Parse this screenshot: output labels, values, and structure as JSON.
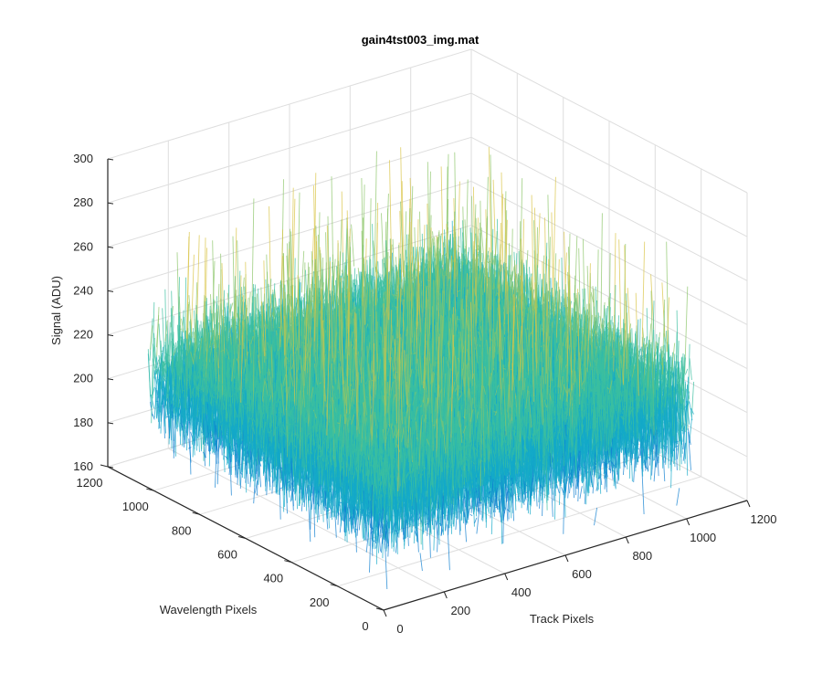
{
  "chart_data": {
    "type": "surface",
    "title": "gain4tst003_img.mat",
    "xlabel": "Track Pixels",
    "ylabel": "Wavelength Pixels",
    "zlabel": "Signal (ADU)",
    "xlim": [
      0,
      1200
    ],
    "ylim": [
      0,
      1200
    ],
    "zlim": [
      160,
      300
    ],
    "x_ticks": [
      "0",
      "200",
      "400",
      "600",
      "800",
      "1000",
      "1200"
    ],
    "y_ticks": [
      "0",
      "200",
      "400",
      "600",
      "800",
      "1000",
      "1200"
    ],
    "z_ticks": [
      "160",
      "180",
      "200",
      "220",
      "240",
      "260",
      "280",
      "300"
    ],
    "surface_extent": {
      "x": [
        0,
        1024
      ],
      "y": [
        0,
        1024
      ]
    },
    "signal_mean": 210,
    "signal_range_typical": [
      180,
      260
    ],
    "signal_range_extreme": [
      165,
      285
    ],
    "grid": true,
    "colormap": [
      "#0f7fd0",
      "#14a9c8",
      "#3bbfa0",
      "#8cc56a",
      "#d9c447"
    ]
  }
}
